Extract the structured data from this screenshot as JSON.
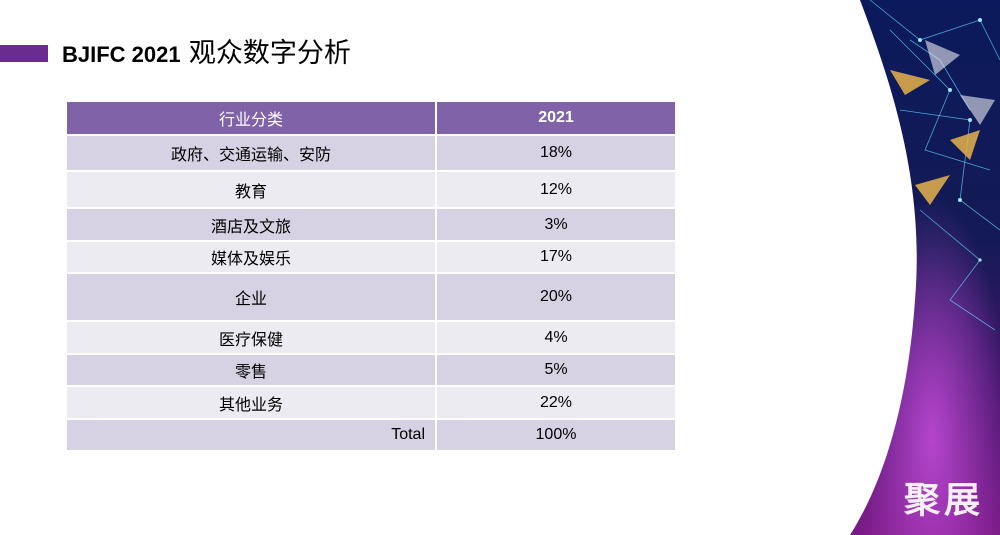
{
  "slide": {
    "title_latin": "BJIFC 2021",
    "title_cjk": "观众数字分析",
    "watermark": "聚展"
  },
  "table": {
    "headers": [
      "行业分类",
      "2021"
    ],
    "rows": [
      {
        "category": "政府、交通运输、安防",
        "value": "18%"
      },
      {
        "category": "教育",
        "value": "12%"
      },
      {
        "category": "酒店及文旅",
        "value": "3%"
      },
      {
        "category": "媒体及娱乐",
        "value": "17%"
      },
      {
        "category": "企业",
        "value": "20%"
      },
      {
        "category": "医疗保健",
        "value": "4%"
      },
      {
        "category": "零售",
        "value": "5%"
      },
      {
        "category": "其他业务",
        "value": "22%"
      }
    ],
    "total": {
      "label": "Total",
      "value": "100%"
    }
  },
  "colors": {
    "header_bg": "#8062a8",
    "row_dark": "#d6d2e3",
    "row_light": "#ecebf1",
    "accent": "#6a2c91"
  }
}
